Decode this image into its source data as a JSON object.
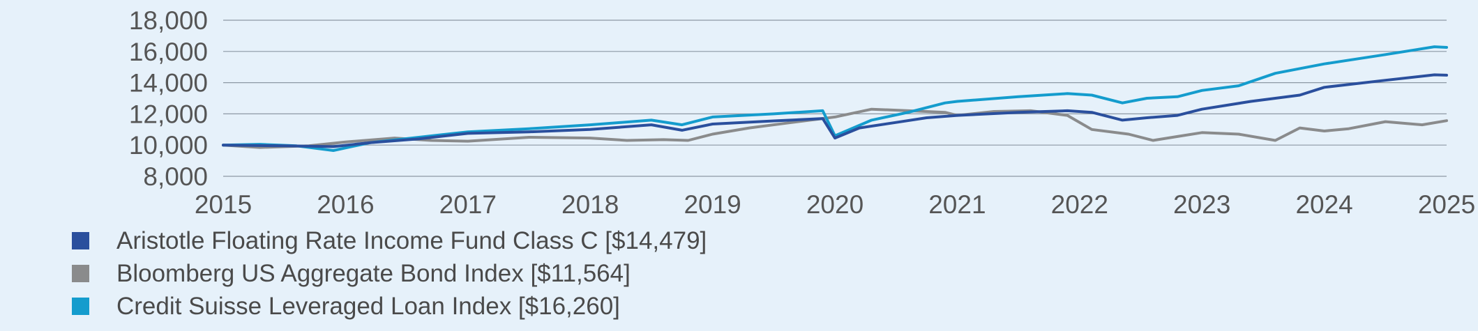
{
  "chart_data": {
    "type": "line",
    "title": "",
    "xlabel": "",
    "ylabel": "",
    "xlim": [
      2015,
      2025
    ],
    "ylim": [
      8000,
      18000
    ],
    "x_ticks": [
      "2015",
      "2016",
      "2017",
      "2018",
      "2019",
      "2020",
      "2021",
      "2022",
      "2023",
      "2024",
      "2025"
    ],
    "y_ticks": [
      "8,000",
      "10,000",
      "12,000",
      "14,000",
      "16,000",
      "18,000"
    ],
    "grid": "horizontal",
    "legend_position": "bottom-left",
    "series": [
      {
        "name": "Aristotle Floating Rate Income Fund Class C [$14,479]",
        "color": "#2a4f9d",
        "x": [
          2015,
          2015.5,
          2015.9,
          2016.2,
          2016.6,
          2017,
          2017.5,
          2018,
          2018.5,
          2018.75,
          2019,
          2019.5,
          2019.9,
          2020.0,
          2020.2,
          2020.5,
          2020.75,
          2021,
          2021.5,
          2021.9,
          2022.1,
          2022.35,
          2022.55,
          2022.8,
          2023,
          2023.4,
          2023.8,
          2024,
          2024.5,
          2024.9,
          2025
        ],
        "y": [
          10000,
          9950,
          9900,
          10150,
          10400,
          10750,
          10850,
          11000,
          11300,
          10950,
          11350,
          11550,
          11700,
          10450,
          11100,
          11450,
          11750,
          11900,
          12100,
          12200,
          12100,
          11600,
          11750,
          11900,
          12300,
          12800,
          13200,
          13700,
          14150,
          14500,
          14479
        ]
      },
      {
        "name": "Bloomberg US Aggregate Bond Index [$11,564]",
        "color": "#8a8b8c",
        "x": [
          2015,
          2015.3,
          2015.7,
          2016,
          2016.4,
          2016.7,
          2017,
          2017.5,
          2018,
          2018.3,
          2018.6,
          2018.8,
          2019,
          2019.3,
          2019.6,
          2019.9,
          2020,
          2020.3,
          2020.6,
          2020.9,
          2021,
          2021.3,
          2021.6,
          2021.9,
          2022.1,
          2022.4,
          2022.6,
          2022.8,
          2023,
          2023.3,
          2023.6,
          2023.8,
          2024,
          2024.2,
          2024.5,
          2024.8,
          2025
        ],
        "y": [
          10000,
          9850,
          9950,
          10200,
          10450,
          10300,
          10250,
          10500,
          10450,
          10300,
          10350,
          10300,
          10700,
          11100,
          11400,
          11700,
          11800,
          12300,
          12200,
          12100,
          11900,
          12150,
          12200,
          11900,
          11000,
          10700,
          10300,
          10550,
          10800,
          10700,
          10300,
          11100,
          10900,
          11050,
          11500,
          11300,
          11564
        ]
      },
      {
        "name": "Credit Suisse Leveraged Loan Index [$16,260]",
        "color": "#149ccd",
        "x": [
          2015,
          2015.3,
          2015.6,
          2015.9,
          2016.2,
          2016.6,
          2017,
          2017.5,
          2018,
          2018.5,
          2018.75,
          2019,
          2019.5,
          2019.9,
          2020.0,
          2020.3,
          2020.6,
          2020.9,
          2021,
          2021.5,
          2021.9,
          2022.1,
          2022.35,
          2022.55,
          2022.8,
          2023,
          2023.3,
          2023.6,
          2024,
          2024.5,
          2024.9,
          2025
        ],
        "y": [
          10000,
          10050,
          9950,
          9650,
          10150,
          10500,
          10850,
          11050,
          11300,
          11600,
          11300,
          11800,
          12000,
          12200,
          10600,
          11600,
          12100,
          12700,
          12800,
          13100,
          13300,
          13200,
          12700,
          13000,
          13100,
          13500,
          13800,
          14600,
          15200,
          15800,
          16300,
          16260
        ]
      }
    ]
  }
}
